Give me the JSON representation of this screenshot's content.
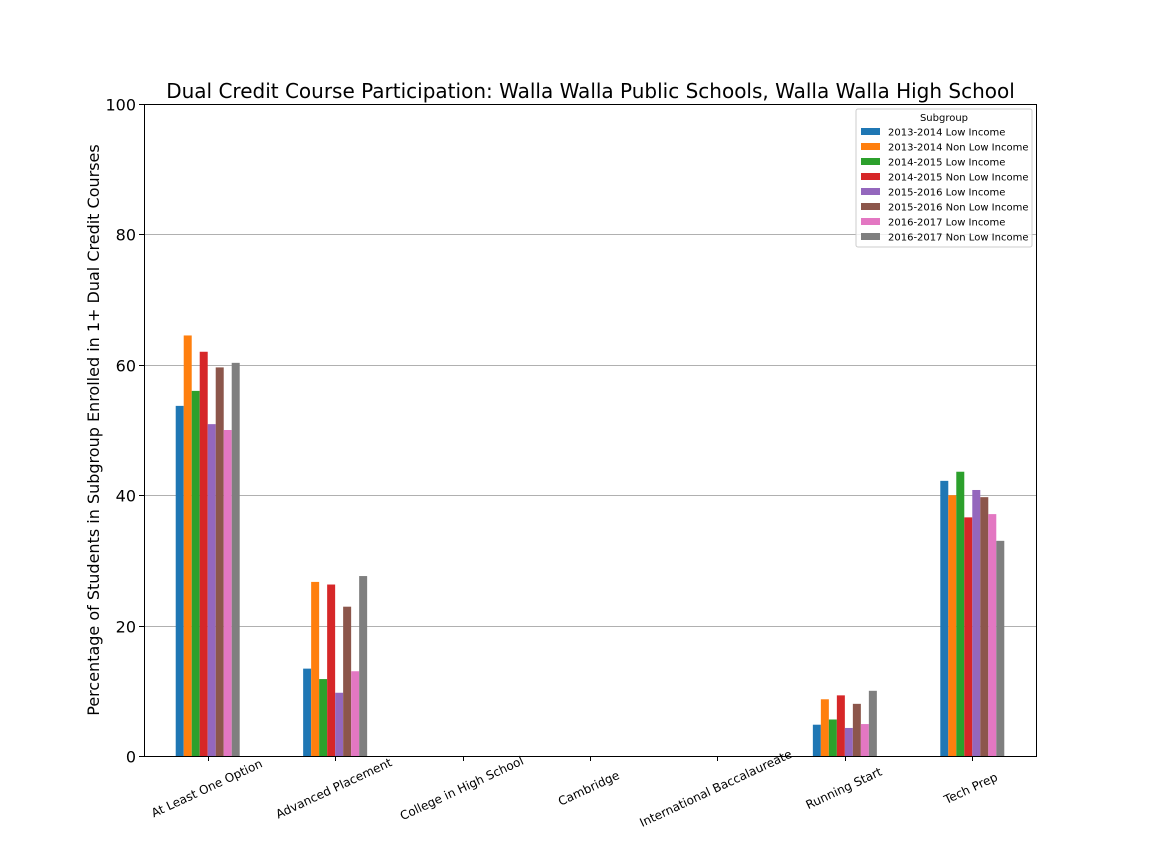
{
  "chart_data": {
    "type": "bar",
    "title": "Dual Credit Course Participation: Walla Walla Public Schools, Walla Walla High School",
    "xlabel": "",
    "ylabel": "Percentage of Students in Subgroup Enrolled in 1+ Dual Credit Courses",
    "ylim": [
      0,
      100
    ],
    "yticks": [
      "0",
      "20",
      "40",
      "60",
      "80",
      "100"
    ],
    "grid": "horizontal",
    "legend_title": "Subgroup",
    "legend_position": "top-right",
    "categories": [
      "At Least One Option",
      "Advanced Placement",
      "College in High School",
      "Cambridge",
      "International Baccalaureate",
      "Running Start",
      "Tech Prep"
    ],
    "series": [
      {
        "name": "2013-2014 Low Income",
        "color": "#1f77b4",
        "values": [
          53.7,
          13.4,
          0,
          0,
          0,
          4.8,
          42.2
        ]
      },
      {
        "name": "2013-2014 Non Low Income",
        "color": "#ff7f0e",
        "values": [
          64.5,
          26.7,
          0,
          0,
          0,
          8.7,
          40.0
        ]
      },
      {
        "name": "2014-2015 Low Income",
        "color": "#2ca02c",
        "values": [
          56.0,
          11.8,
          0,
          0,
          0,
          5.6,
          43.6
        ]
      },
      {
        "name": "2014-2015 Non Low Income",
        "color": "#d62728",
        "values": [
          62.0,
          26.3,
          0,
          0,
          0,
          9.3,
          36.6
        ]
      },
      {
        "name": "2015-2016 Low Income",
        "color": "#9467bd",
        "values": [
          50.9,
          9.7,
          0,
          0,
          0,
          4.3,
          40.8
        ]
      },
      {
        "name": "2015-2016 Non Low Income",
        "color": "#8c564b",
        "values": [
          59.6,
          22.9,
          0,
          0,
          0,
          8.0,
          39.7
        ]
      },
      {
        "name": "2016-2017 Low Income",
        "color": "#e377c2",
        "values": [
          50.0,
          13.0,
          0,
          0,
          0,
          4.9,
          37.1
        ]
      },
      {
        "name": "2016-2017 Non Low Income",
        "color": "#7f7f7f",
        "values": [
          60.3,
          27.6,
          0,
          0,
          0,
          10.0,
          33.0
        ]
      }
    ]
  }
}
